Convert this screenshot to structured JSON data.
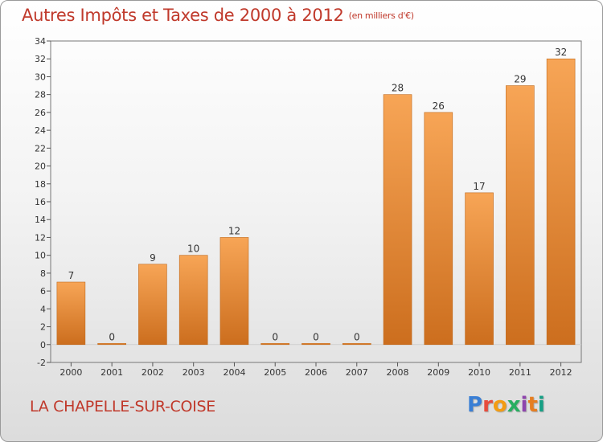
{
  "header": {
    "title": "Autres Impôts et Taxes de 2000 à 2012",
    "subtitle": "(en milliers d'€)"
  },
  "footer": {
    "commune": "LA CHAPELLE-SUR-COISE",
    "logo_text": "Proxiti",
    "logo_colors": [
      "#3a7fd5",
      "#e74c3c",
      "#f39c12",
      "#27ae60",
      "#8e44ad",
      "#e67e22",
      "#16a085"
    ]
  },
  "chart_data": {
    "type": "bar",
    "categories": [
      "2000",
      "2001",
      "2002",
      "2003",
      "2004",
      "2005",
      "2006",
      "2007",
      "2008",
      "2009",
      "2010",
      "2011",
      "2012"
    ],
    "values": [
      7,
      0,
      9,
      10,
      12,
      0,
      0,
      0,
      28,
      26,
      17,
      29,
      32
    ],
    "value_labels": [
      "7",
      "0",
      "9",
      "10",
      "12",
      "0",
      "0",
      "0",
      "28",
      "26",
      "17",
      "29",
      "32"
    ],
    "title": "Autres Impôts et Taxes de 2000 à 2012",
    "subtitle": "(en milliers d'€)",
    "ylim": [
      -2,
      34
    ],
    "yticks": [
      -2,
      0,
      2,
      4,
      6,
      8,
      10,
      12,
      14,
      16,
      18,
      20,
      22,
      24,
      26,
      28,
      30,
      32,
      34
    ],
    "grid": false,
    "bar_color_top": "#f7a556",
    "bar_color_bottom": "#cc6e1e"
  }
}
